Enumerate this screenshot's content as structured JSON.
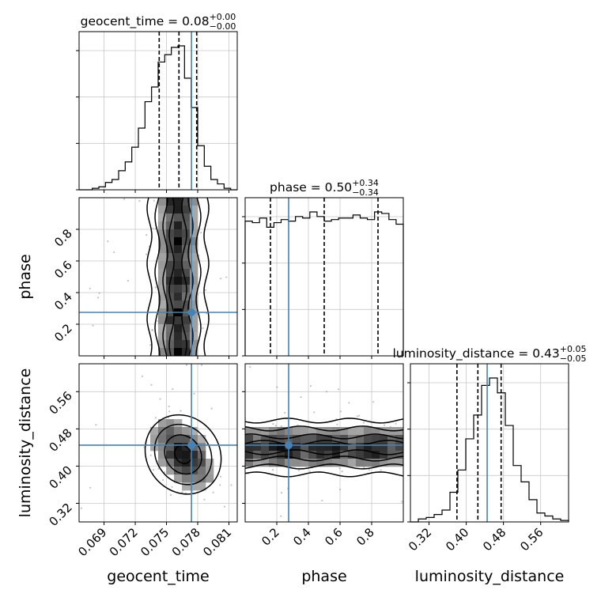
{
  "chart_data": {
    "type": "corner",
    "parameters": [
      "geocent_time",
      "phase",
      "luminosity_distance"
    ],
    "truth_color": "#4682b4",
    "grid": true,
    "titles": [
      {
        "name": "geocent_time",
        "median": "0.08",
        "plus": "+0.00",
        "minus": "−0.00"
      },
      {
        "name": "phase",
        "median": "0.50",
        "plus": "+0.34",
        "minus": "−0.34"
      },
      {
        "name": "luminosity_distance",
        "median": "0.43",
        "plus": "+0.05",
        "minus": "−0.05"
      }
    ],
    "axes": {
      "geocent_time": {
        "range": [
          0.0666,
          0.0818
        ],
        "ticks": [
          "0.069",
          "0.072",
          "0.075",
          "0.078",
          "0.081"
        ],
        "tick_values": [
          0.069,
          0.072,
          0.075,
          0.078,
          0.081
        ]
      },
      "phase": {
        "range": [
          0.0,
          1.0
        ],
        "ticks": [
          "0.2",
          "0.4",
          "0.6",
          "0.8"
        ],
        "tick_values": [
          0.2,
          0.4,
          0.6,
          0.8
        ]
      },
      "luminosity_distance": {
        "range": [
          0.28,
          0.62
        ],
        "ticks": [
          "0.32",
          "0.40",
          "0.48",
          "0.56"
        ],
        "tick_values": [
          0.32,
          0.4,
          0.48,
          0.56
        ]
      }
    },
    "truths": {
      "geocent_time": 0.0774,
      "phase": 0.275,
      "luminosity_distance": 0.445
    },
    "quantiles": {
      "geocent_time": [
        0.0743,
        0.0762,
        0.0779
      ],
      "phase": [
        0.16,
        0.5,
        0.84
      ],
      "luminosity_distance": [
        0.38,
        0.425,
        0.475
      ]
    },
    "histograms": {
      "geocent_time": {
        "edges_range": [
          0.0666,
          0.0818
        ],
        "counts": [
          0.0,
          0.0,
          0.01,
          0.02,
          0.05,
          0.07,
          0.13,
          0.19,
          0.29,
          0.42,
          0.6,
          0.7,
          0.87,
          0.92,
          0.97,
          0.98,
          0.76,
          0.56,
          0.3,
          0.16,
          0.07,
          0.04,
          0.01,
          0.0
        ]
      },
      "phase": {
        "edges_range": [
          0.0,
          1.0
        ],
        "counts": [
          0.88,
          0.87,
          0.9,
          0.84,
          0.87,
          0.89,
          0.88,
          0.91,
          0.9,
          0.94,
          0.91,
          0.88,
          0.89,
          0.9,
          0.9,
          0.92,
          0.9,
          0.89,
          0.94,
          0.93,
          0.89,
          0.86
        ]
      },
      "luminosity_distance": {
        "edges_range": [
          0.28,
          0.62
        ],
        "counts": [
          0.0,
          0.02,
          0.03,
          0.05,
          0.08,
          0.2,
          0.35,
          0.56,
          0.72,
          0.92,
          0.97,
          0.87,
          0.65,
          0.38,
          0.27,
          0.15,
          0.06,
          0.04,
          0.02,
          0.01
        ]
      }
    },
    "posterior_center": {
      "geocent_time": 0.0766,
      "luminosity_distance": 0.425
    },
    "histogram_ymax_note": "normalized",
    "hist_y_ticks": 4
  }
}
